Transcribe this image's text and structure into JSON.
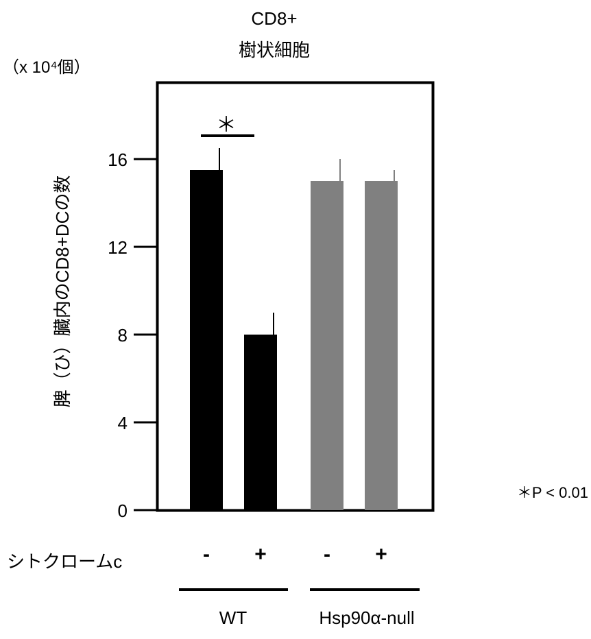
{
  "chart_data": {
    "type": "bar",
    "title_lines": [
      "CD8+",
      "樹状細胞"
    ],
    "unit_label": "（x 10⁴個）",
    "ylabel": "脾（ひ）臓内のCD8+DCの数",
    "ylim": [
      0,
      20
    ],
    "yticks": [
      0,
      4,
      8,
      12,
      16
    ],
    "categories": [
      {
        "treatment": "-",
        "value": 15.5,
        "error": 1.0,
        "group": "WT",
        "color": "#000000"
      },
      {
        "treatment": "+",
        "value": 8.0,
        "error": 1.0,
        "group": "WT",
        "color": "#000000"
      },
      {
        "treatment": "-",
        "value": 15.0,
        "error": 1.0,
        "group": "Hsp90α-null",
        "color": "#808080"
      },
      {
        "treatment": "+",
        "value": 15.0,
        "error": 0.5,
        "group": "Hsp90α-null",
        "color": "#808080"
      }
    ],
    "row_label": "シトクロームc",
    "groups": [
      "WT",
      "Hsp90α-null"
    ],
    "significance": {
      "between": [
        0,
        1
      ],
      "marker": "＊"
    },
    "footnote": "＊P < 0.01"
  }
}
